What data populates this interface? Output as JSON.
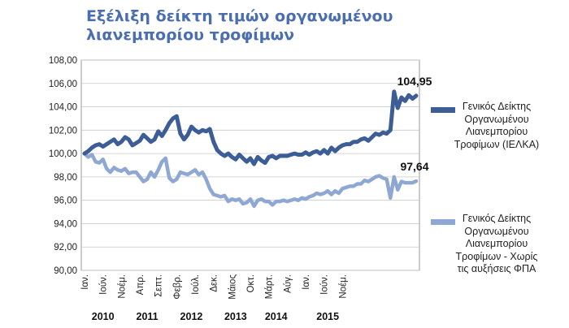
{
  "title_lines": [
    "Εξέλιξη δείκτη τιμών οργανωμένου",
    "λιανεμπορίου τροφίμων"
  ],
  "chart_data": {
    "type": "line",
    "ylim": [
      90,
      108
    ],
    "yticks": [
      "108,00",
      "106,00",
      "104,00",
      "102,00",
      "100,00",
      "98,00",
      "96,00",
      "94,00",
      "92,00",
      "90,00"
    ],
    "ytick_values": [
      108,
      106,
      104,
      102,
      100,
      98,
      96,
      94,
      92,
      90
    ],
    "month_labels": [
      {
        "label": "Ιαν.",
        "month_index": 0
      },
      {
        "label": "Ιούν.",
        "month_index": 5
      },
      {
        "label": "Νοέμ.",
        "month_index": 10
      },
      {
        "label": "Απρ.",
        "month_index": 15
      },
      {
        "label": "Σεπτ.",
        "month_index": 20
      },
      {
        "label": "Φεβρ.",
        "month_index": 25
      },
      {
        "label": "Ιούλ.",
        "month_index": 30
      },
      {
        "label": "Δεκ.",
        "month_index": 35
      },
      {
        "label": "Μάιος",
        "month_index": 40
      },
      {
        "label": "Οκτ.",
        "month_index": 45
      },
      {
        "label": "Μάρτ.",
        "month_index": 50
      },
      {
        "label": "Αύγ.",
        "month_index": 55
      },
      {
        "label": "Ιαν.",
        "month_index": 60
      },
      {
        "label": "Ιούν.",
        "month_index": 65
      },
      {
        "label": "Νοέμ.",
        "month_index": 70
      }
    ],
    "year_labels": [
      {
        "label": "2010",
        "month_index": 5
      },
      {
        "label": "2011",
        "month_index": 17
      },
      {
        "label": "2012",
        "month_index": 29
      },
      {
        "label": "2013",
        "month_index": 41
      },
      {
        "label": "2014",
        "month_index": 52
      },
      {
        "label": "2015",
        "month_index": 66
      }
    ],
    "series": [
      {
        "name": "Γενικός Δείκτης Οργανωμένου Λιανεμπορίου Τροφίμων (ΙΕΛΚΑ)",
        "color": "#3d5d97",
        "end_label": "104,95",
        "values": [
          100.0,
          100.2,
          100.5,
          100.7,
          100.8,
          100.6,
          100.8,
          101.0,
          101.2,
          100.8,
          101.0,
          101.4,
          101.2,
          100.7,
          100.9,
          101.1,
          101.6,
          101.3,
          101.0,
          101.2,
          101.9,
          101.5,
          102.0,
          102.6,
          103.0,
          103.2,
          101.7,
          101.2,
          101.6,
          102.3,
          102.0,
          101.8,
          102.0,
          101.9,
          102.1,
          101.0,
          100.3,
          100.0,
          99.8,
          100.0,
          99.7,
          99.5,
          99.9,
          99.6,
          99.3,
          99.6,
          99.1,
          99.7,
          99.4,
          99.2,
          99.7,
          99.8,
          99.6,
          99.8,
          99.8,
          99.8,
          99.9,
          100.0,
          99.9,
          99.9,
          100.1,
          99.9,
          100.1,
          100.2,
          100.0,
          100.3,
          100.0,
          100.5,
          100.2,
          100.5,
          100.7,
          100.8,
          100.8,
          101.0,
          101.0,
          101.2,
          101.3,
          101.1,
          101.4,
          101.7,
          101.6,
          101.8,
          101.7,
          102.0,
          105.3,
          103.9,
          104.8,
          104.5,
          105.0,
          104.7,
          104.95
        ]
      },
      {
        "name": "Γενικός Δείκτης Οργανωμένου Λιανεμπορίου Τροφίμων - Χωρίς τις αυξήσεις ΦΠΑ",
        "color": "#8fa8d3",
        "end_label": "97,64",
        "values": [
          100.0,
          99.7,
          99.9,
          99.3,
          99.2,
          99.5,
          98.7,
          98.4,
          98.8,
          98.6,
          98.5,
          98.7,
          98.3,
          98.4,
          98.4,
          98.0,
          97.6,
          97.8,
          98.4,
          98.0,
          98.6,
          99.3,
          99.6,
          97.9,
          97.6,
          97.8,
          98.4,
          98.3,
          98.2,
          98.4,
          98.6,
          98.2,
          98.4,
          97.8,
          97.0,
          96.5,
          96.4,
          96.3,
          96.4,
          95.9,
          96.1,
          96.0,
          96.1,
          95.7,
          95.8,
          96.1,
          95.5,
          96.0,
          96.1,
          95.9,
          95.9,
          95.6,
          95.9,
          95.9,
          96.0,
          95.9,
          96.0,
          96.1,
          96.0,
          96.2,
          96.1,
          96.3,
          96.4,
          96.6,
          96.5,
          96.6,
          96.8,
          96.5,
          96.8,
          96.6,
          97.0,
          97.1,
          97.2,
          97.2,
          97.4,
          97.4,
          97.7,
          97.6,
          97.8,
          98.0,
          98.1,
          97.9,
          97.8,
          96.2,
          98.0,
          96.9,
          97.6,
          97.5,
          97.5,
          97.5,
          97.64
        ]
      }
    ],
    "grid": true,
    "legend_placement": "right",
    "xlabel": "",
    "ylabel": ""
  }
}
